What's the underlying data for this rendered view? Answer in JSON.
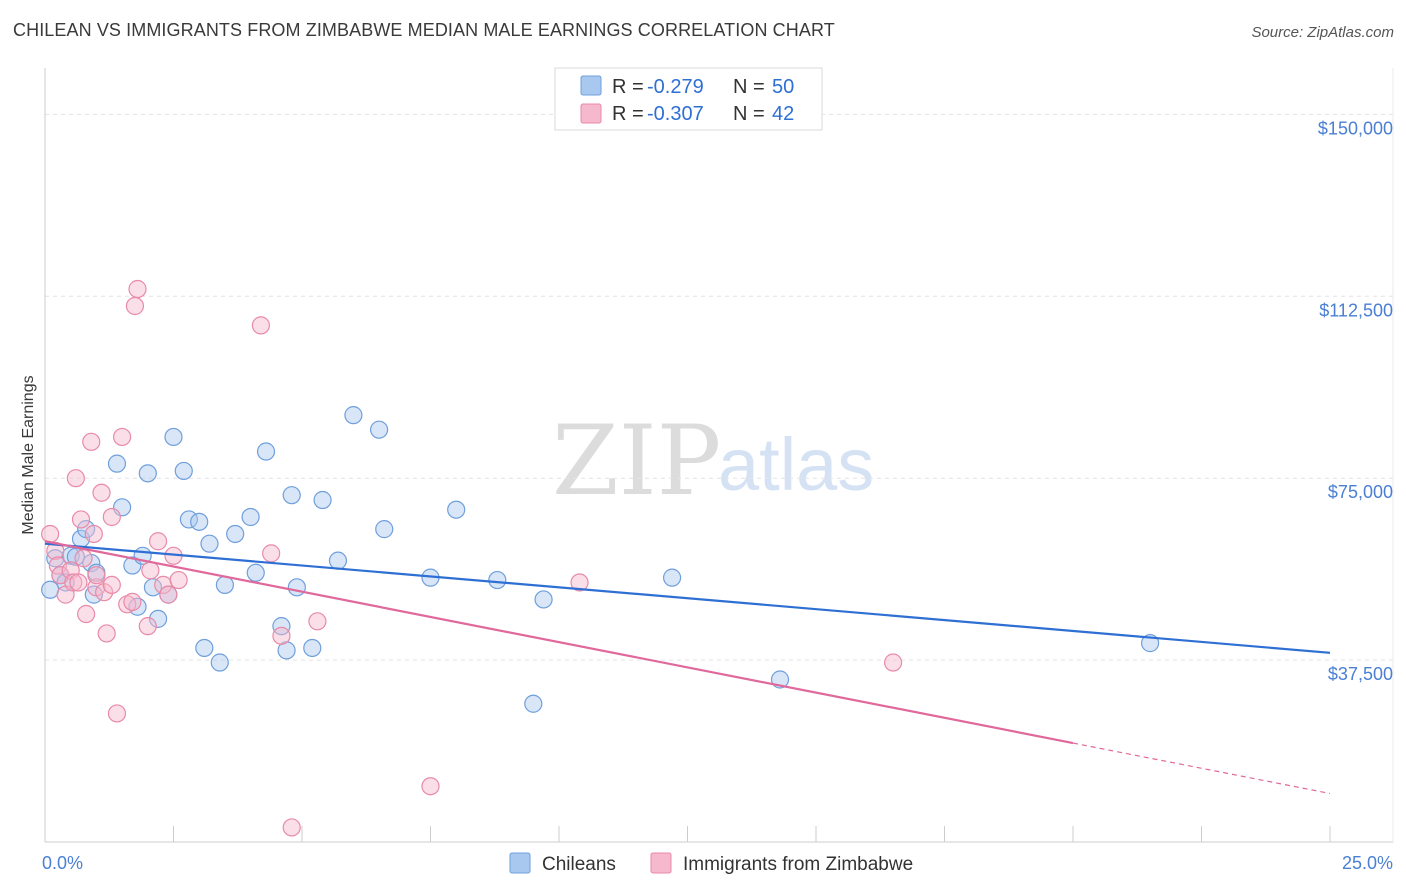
{
  "title": "CHILEAN VS IMMIGRANTS FROM ZIMBABWE MEDIAN MALE EARNINGS CORRELATION CHART",
  "source": "Source: ZipAtlas.com",
  "watermark": {
    "zip": "ZIP",
    "atlas": "atlas"
  },
  "colors": {
    "blue_fill": "#a9c8f0",
    "blue_stroke": "#6f9fdc",
    "blue_line": "#2e6fd4",
    "pink_fill": "#f6b8cc",
    "pink_stroke": "#e88aa8",
    "pink_line": "#e0689a",
    "tick_text": "#4a7fd4",
    "grid": "#e3e3e3"
  },
  "legend": {
    "r_label": "R =",
    "n_label": "N =",
    "entries": [
      {
        "r": "-0.279",
        "n": "50"
      },
      {
        "r": "-0.307",
        "n": "42"
      }
    ]
  },
  "chart_data": {
    "type": "scatter",
    "title": "CHILEAN VS IMMIGRANTS FROM ZIMBABWE MEDIAN MALE EARNINGS CORRELATION CHART",
    "xlabel": "",
    "ylabel": "Median Male Earnings",
    "xlim": [
      0,
      25
    ],
    "ylim": [
      0,
      157500
    ],
    "x_tick_labels": [
      "0.0%",
      "25.0%"
    ],
    "y_ticks": [
      37500,
      75000,
      112500,
      150000
    ],
    "y_tick_labels": [
      "$37,500",
      "$75,000",
      "$112,500",
      "$150,000"
    ],
    "grid": true,
    "legend_position": "top-center",
    "series": [
      {
        "name": "Chileans",
        "r": -0.279,
        "n": 50,
        "trend": {
          "x": [
            0,
            25
          ],
          "y": [
            61500,
            39000
          ],
          "dashed_from": null
        },
        "points": [
          [
            0.1,
            52000
          ],
          [
            0.2,
            58500
          ],
          [
            0.3,
            55000
          ],
          [
            0.4,
            53500
          ],
          [
            0.5,
            59000
          ],
          [
            0.6,
            58800
          ],
          [
            0.7,
            62500
          ],
          [
            0.8,
            64500
          ],
          [
            0.9,
            57500
          ],
          [
            0.95,
            51000
          ],
          [
            1.0,
            55500
          ],
          [
            1.4,
            78000
          ],
          [
            1.5,
            69000
          ],
          [
            1.7,
            57000
          ],
          [
            1.8,
            48500
          ],
          [
            1.9,
            59000
          ],
          [
            2.0,
            76000
          ],
          [
            2.1,
            52500
          ],
          [
            2.2,
            46000
          ],
          [
            2.4,
            51000
          ],
          [
            2.5,
            83500
          ],
          [
            2.7,
            76500
          ],
          [
            2.8,
            66500
          ],
          [
            3.0,
            66000
          ],
          [
            3.1,
            40000
          ],
          [
            3.2,
            61500
          ],
          [
            3.4,
            37000
          ],
          [
            3.5,
            53000
          ],
          [
            3.7,
            63500
          ],
          [
            4.0,
            67000
          ],
          [
            4.1,
            55500
          ],
          [
            4.3,
            80500
          ],
          [
            4.6,
            44500
          ],
          [
            4.7,
            39500
          ],
          [
            4.8,
            71500
          ],
          [
            4.9,
            52500
          ],
          [
            5.2,
            40000
          ],
          [
            5.4,
            70500
          ],
          [
            5.7,
            58000
          ],
          [
            6.0,
            88000
          ],
          [
            6.5,
            85000
          ],
          [
            6.6,
            64500
          ],
          [
            7.5,
            54500
          ],
          [
            8.0,
            68500
          ],
          [
            8.8,
            54000
          ],
          [
            9.5,
            28500
          ],
          [
            9.7,
            50000
          ],
          [
            12.2,
            54500
          ],
          [
            14.3,
            33500
          ],
          [
            21.5,
            41000
          ]
        ]
      },
      {
        "name": "Immigrants from Zimbabwe",
        "r": -0.307,
        "n": 42,
        "trend": {
          "x": [
            0,
            25
          ],
          "y": [
            62000,
            10000
          ],
          "dashed_from": 20
        },
        "points": [
          [
            0.1,
            63500
          ],
          [
            0.2,
            60000
          ],
          [
            0.25,
            57000
          ],
          [
            0.3,
            55000
          ],
          [
            0.4,
            51000
          ],
          [
            0.5,
            56000
          ],
          [
            0.55,
            53500
          ],
          [
            0.6,
            75000
          ],
          [
            0.65,
            53500
          ],
          [
            0.7,
            66500
          ],
          [
            0.75,
            58500
          ],
          [
            0.8,
            47000
          ],
          [
            0.9,
            82500
          ],
          [
            0.95,
            63500
          ],
          [
            1.0,
            52500
          ],
          [
            1.0,
            55000
          ],
          [
            1.1,
            72000
          ],
          [
            1.15,
            51500
          ],
          [
            1.2,
            43000
          ],
          [
            1.3,
            53000
          ],
          [
            1.3,
            67000
          ],
          [
            1.4,
            26500
          ],
          [
            1.5,
            83500
          ],
          [
            1.6,
            49000
          ],
          [
            1.7,
            49500
          ],
          [
            1.75,
            110500
          ],
          [
            1.8,
            114000
          ],
          [
            2.0,
            44500
          ],
          [
            2.05,
            56000
          ],
          [
            2.2,
            62000
          ],
          [
            2.3,
            53000
          ],
          [
            2.4,
            51000
          ],
          [
            2.5,
            59000
          ],
          [
            2.6,
            54000
          ],
          [
            4.2,
            106500
          ],
          [
            4.4,
            59500
          ],
          [
            4.6,
            42500
          ],
          [
            4.8,
            3000
          ],
          [
            5.3,
            45500
          ],
          [
            7.5,
            11500
          ],
          [
            10.4,
            53500
          ],
          [
            16.5,
            37000
          ]
        ]
      }
    ]
  }
}
